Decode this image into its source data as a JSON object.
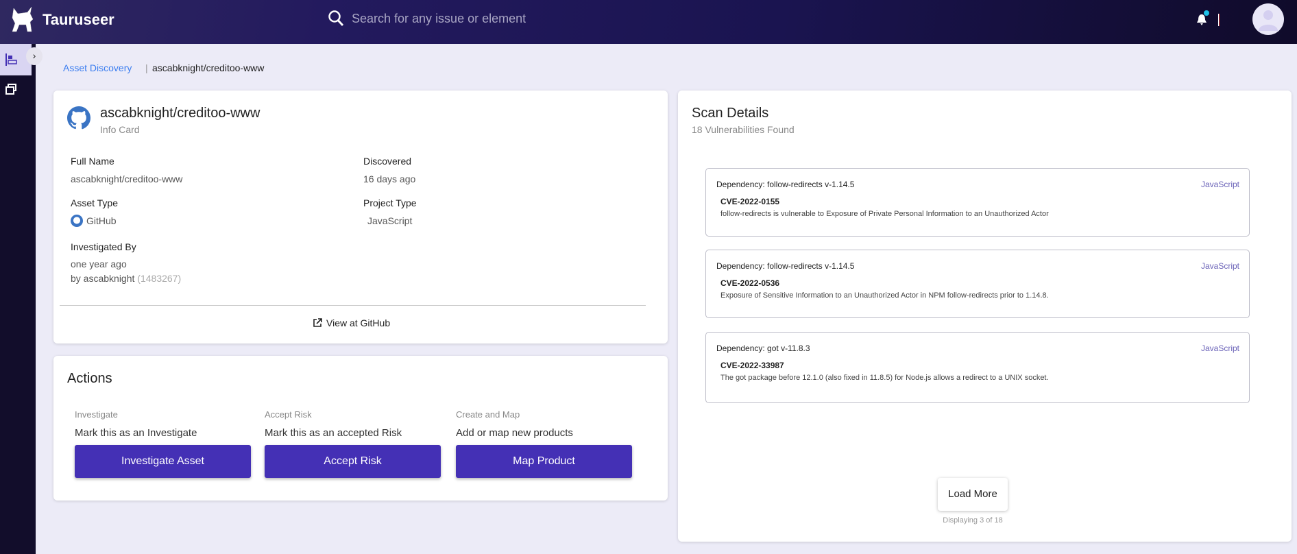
{
  "header": {
    "brand": "Tauruseer",
    "search_placeholder": "Search for any issue or element",
    "notification_dot_color": "#1fc2e8"
  },
  "breadcrumb": {
    "link": "Asset Discovery",
    "separator": "|",
    "current": "ascabknight/creditoo-www"
  },
  "info_card": {
    "title": "ascabknight/creditoo-www",
    "subtitle": "Info Card",
    "full_name_label": "Full Name",
    "full_name": "ascabknight/creditoo-www",
    "discovered_label": "Discovered",
    "discovered": "16 days ago",
    "asset_type_label": "Asset Type",
    "asset_type": "GitHub",
    "project_type_label": "Project Type",
    "project_type": "JavaScript",
    "investigated_label": "Investigated By",
    "investigated_when": "one year ago",
    "investigated_by": "by ascabknight",
    "investigated_id": "(1483267)",
    "view_link": "View at GitHub"
  },
  "actions": {
    "title": "Actions",
    "items": [
      {
        "label": "Investigate",
        "desc": "Mark this as an Investigate",
        "button": "Investigate Asset"
      },
      {
        "label": "Accept Risk",
        "desc": "Mark this as an accepted Risk",
        "button": "Accept Risk"
      },
      {
        "label": "Create and Map",
        "desc": "Add or map new products",
        "button": "Map Product"
      }
    ]
  },
  "scan": {
    "title": "Scan Details",
    "subtitle": "18 Vulnerabilities Found",
    "items": [
      {
        "dependency": "Dependency: follow-redirects v-1.14.5",
        "language": "JavaScript",
        "cve": "CVE-2022-0155",
        "description": "follow-redirects is vulnerable to Exposure of Private Personal Information to an Unauthorized Actor"
      },
      {
        "dependency": "Dependency: follow-redirects v-1.14.5",
        "language": "JavaScript",
        "cve": "CVE-2022-0536",
        "description": "Exposure of Sensitive Information to an Unauthorized Actor in NPM follow-redirects prior to 1.14.8."
      },
      {
        "dependency": "Dependency: got v-11.8.3",
        "language": "JavaScript",
        "cve": "CVE-2022-33987",
        "description": "The got package before 12.1.0 (also fixed in 11.8.5) for Node.js allows a redirect to a UNIX socket."
      }
    ],
    "load_more": "Load More",
    "displaying": "Displaying 3 of 18"
  },
  "colors": {
    "accent": "#4430b5",
    "header": "#1a1450",
    "link": "#3c7ef0"
  }
}
